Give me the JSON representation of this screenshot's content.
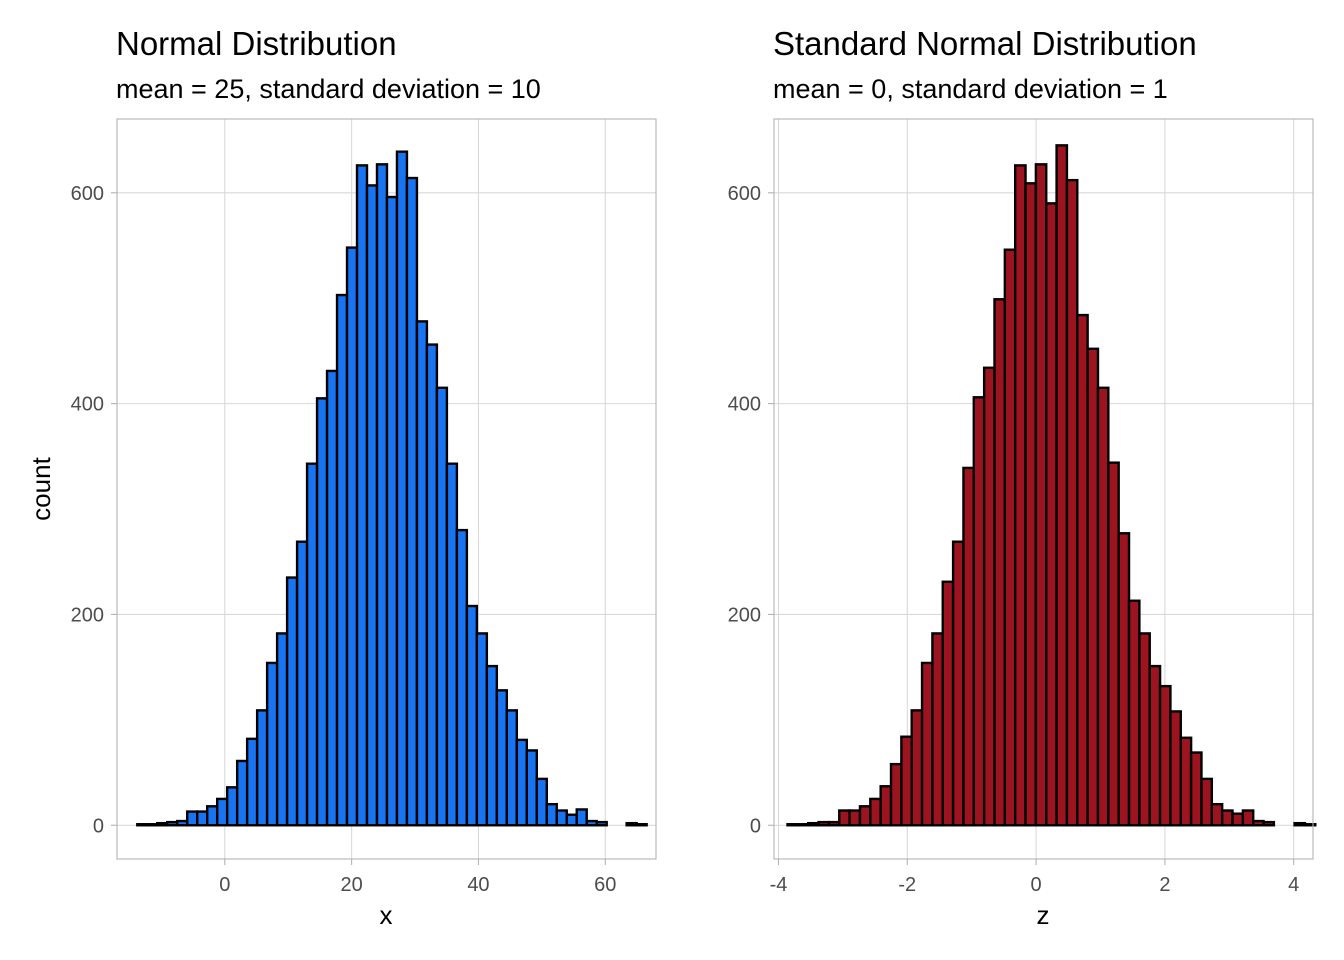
{
  "chart_data": [
    {
      "type": "bar",
      "title": "Normal Distribution",
      "subtitle": "mean = 25, standard deviation = 10",
      "xlabel": "x",
      "ylabel": "count",
      "fill_color": "#1874f0",
      "xlim": [
        -17,
        68
      ],
      "ylim": [
        -32,
        670
      ],
      "x_ticks": [
        0,
        20,
        40,
        60
      ],
      "y_ticks": [
        0,
        200,
        400,
        600
      ],
      "bin_start": -13.8,
      "bin_width": 1.575,
      "values": [
        1,
        1,
        2,
        3,
        4,
        13,
        13,
        18,
        25,
        36,
        61,
        82,
        109,
        154,
        182,
        235,
        269,
        343,
        405,
        431,
        503,
        548,
        626,
        607,
        627,
        596,
        639,
        614,
        478,
        456,
        415,
        343,
        280,
        208,
        182,
        151,
        128,
        109,
        81,
        71,
        44,
        20,
        14,
        10,
        15,
        4,
        3,
        0,
        0,
        2,
        1
      ]
    },
    {
      "type": "bar",
      "title": "Standard Normal Distribution",
      "subtitle": "mean = 0, standard deviation = 1",
      "xlabel": "z",
      "ylabel": "",
      "fill_color": "#9c1420",
      "xlim": [
        -4.07,
        4.3
      ],
      "ylim": [
        -32,
        670
      ],
      "x_ticks": [
        -4,
        -2,
        0,
        2,
        4
      ],
      "y_ticks": [
        0,
        200,
        400,
        600
      ],
      "bin_start": -3.86,
      "bin_width": 0.1607,
      "values": [
        1,
        1,
        2,
        3,
        3,
        14,
        14,
        18,
        25,
        37,
        58,
        84,
        109,
        154,
        182,
        231,
        269,
        339,
        406,
        434,
        499,
        546,
        626,
        609,
        627,
        590,
        645,
        612,
        484,
        452,
        415,
        344,
        277,
        213,
        182,
        151,
        132,
        108,
        83,
        69,
        44,
        20,
        14,
        11,
        14,
        4,
        3,
        0,
        0,
        2,
        1
      ]
    }
  ]
}
